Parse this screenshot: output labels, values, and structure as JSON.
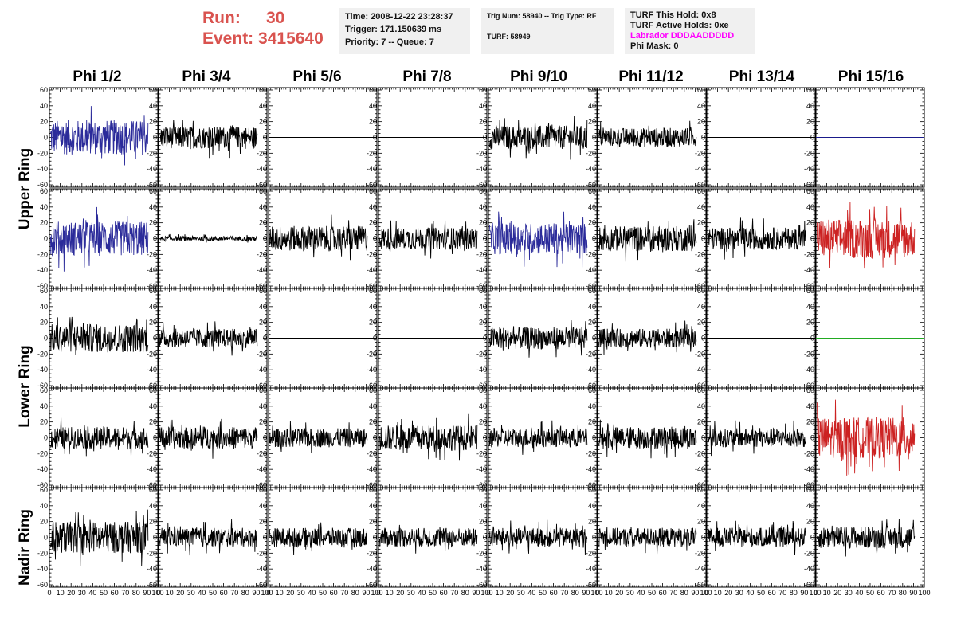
{
  "header": {
    "run_label": "Run:",
    "run_value": "30",
    "event_label": "Event:",
    "event_value": "3415640"
  },
  "info_time": {
    "line1": "Time: 2008-12-22 23:28:37",
    "line2": "Trigger: 171.150639 ms",
    "line3": "Priority: 7 -- Queue: 7"
  },
  "info_trig": {
    "line1": "Trig Num: 58940 -- Trig Type: RF",
    "line2": "TURF: 58949"
  },
  "info_turf": {
    "line1": "TURF This Hold: 0x8",
    "line2": "TURF Active Holds: 0xe",
    "line3": "Labrador DDDAADDDDD",
    "line4": "Phi Mask: 0"
  },
  "columns": [
    "Phi 1/2",
    "Phi 3/4",
    "Phi 5/6",
    "Phi 7/8",
    "Phi 9/10",
    "Phi 11/12",
    "Phi 13/14",
    "Phi 15/16"
  ],
  "rows": [
    "Upper Ring",
    "Lower Ring",
    "Nadir Ring"
  ],
  "colors": {
    "black": "#000000",
    "blue": "#2b2b9a",
    "red": "#cc2222",
    "green": "#22aa22",
    "navy": "#1a1a8a"
  },
  "chart_data": {
    "type": "line",
    "panel_grid": {
      "rows": 5,
      "cols": 8
    },
    "xlim": [
      0,
      100
    ],
    "ylim": [
      -60,
      60
    ],
    "x_ticks": [
      "0",
      "10",
      "20",
      "30",
      "40",
      "50",
      "60",
      "70",
      "80",
      "90",
      "100"
    ],
    "y_ticks": [
      "60",
      "40",
      "20",
      "0",
      "-20",
      "-40",
      "-60"
    ],
    "panels": [
      [
        {
          "style": "noise",
          "color": "blue",
          "amp": 22
        },
        {
          "style": "noise",
          "color": "black",
          "amp": 14
        },
        {
          "style": "flat",
          "color": "black",
          "amp": 0
        },
        {
          "style": "flat",
          "color": "black",
          "amp": 0
        },
        {
          "style": "noise",
          "color": "black",
          "amp": 15
        },
        {
          "style": "noise",
          "color": "black",
          "amp": 12
        },
        {
          "style": "flat",
          "color": "black",
          "amp": 0
        },
        {
          "style": "flat",
          "color": "navy",
          "amp": 0
        }
      ],
      [
        {
          "style": "noise",
          "color": "blue",
          "amp": 22
        },
        {
          "style": "noise",
          "color": "black",
          "amp": 3
        },
        {
          "style": "noise",
          "color": "black",
          "amp": 16
        },
        {
          "style": "noise",
          "color": "black",
          "amp": 14
        },
        {
          "style": "noise",
          "color": "blue",
          "amp": 20
        },
        {
          "style": "noise",
          "color": "black",
          "amp": 16
        },
        {
          "style": "noise",
          "color": "black",
          "amp": 14
        },
        {
          "style": "noise",
          "color": "red",
          "amp": 25
        }
      ],
      [
        {
          "style": "noise",
          "color": "black",
          "amp": 18
        },
        {
          "style": "noise",
          "color": "black",
          "amp": 12
        },
        {
          "style": "flat",
          "color": "black",
          "amp": 0
        },
        {
          "style": "flat",
          "color": "black",
          "amp": 0
        },
        {
          "style": "noise",
          "color": "black",
          "amp": 14
        },
        {
          "style": "noise",
          "color": "black",
          "amp": 12
        },
        {
          "style": "flat",
          "color": "black",
          "amp": 0
        },
        {
          "style": "flat",
          "color": "green",
          "amp": 0
        }
      ],
      [
        {
          "style": "noise",
          "color": "black",
          "amp": 14
        },
        {
          "style": "noise",
          "color": "black",
          "amp": 14
        },
        {
          "style": "noise",
          "color": "black",
          "amp": 12
        },
        {
          "style": "noise",
          "color": "black",
          "amp": 16
        },
        {
          "style": "noise",
          "color": "black",
          "amp": 12
        },
        {
          "style": "noise",
          "color": "black",
          "amp": 14
        },
        {
          "style": "noise",
          "color": "black",
          "amp": 12
        },
        {
          "style": "noise",
          "color": "red",
          "amp": 26
        }
      ],
      [
        {
          "style": "noise",
          "color": "black",
          "amp": 20
        },
        {
          "style": "noise",
          "color": "black",
          "amp": 12
        },
        {
          "style": "noise",
          "color": "black",
          "amp": 12
        },
        {
          "style": "noise",
          "color": "black",
          "amp": 12
        },
        {
          "style": "noise",
          "color": "black",
          "amp": 12
        },
        {
          "style": "noise",
          "color": "black",
          "amp": 12
        },
        {
          "style": "noise",
          "color": "black",
          "amp": 12
        },
        {
          "style": "noise",
          "color": "black",
          "amp": 14
        }
      ]
    ]
  }
}
